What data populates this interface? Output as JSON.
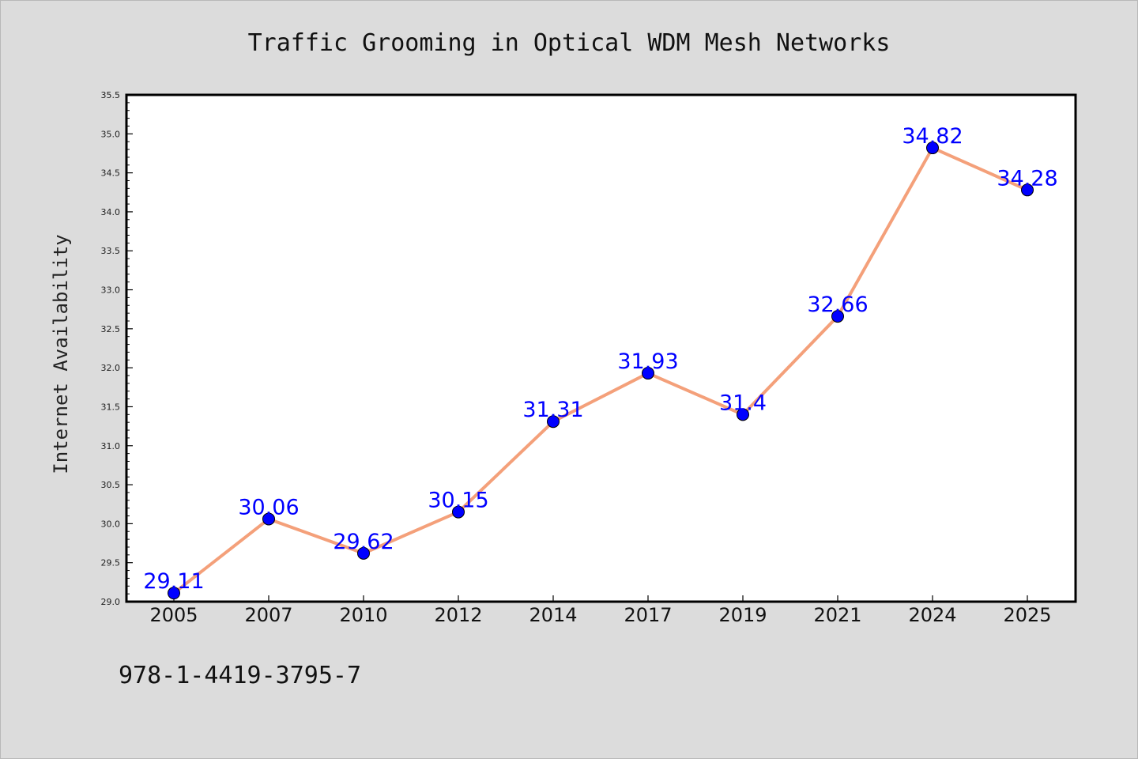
{
  "footer": {
    "isbn": "978-1-4419-3795-7"
  },
  "chart_data": {
    "type": "line",
    "title": "Traffic Grooming in Optical WDM Mesh Networks",
    "xlabel": "",
    "ylabel": "Internet Availability",
    "categories": [
      "2005",
      "2007",
      "2010",
      "2012",
      "2014",
      "2017",
      "2019",
      "2021",
      "2024",
      "2025"
    ],
    "series": [
      {
        "values": [
          29.11,
          30.06,
          29.62,
          30.15,
          31.31,
          31.93,
          31.4,
          32.66,
          34.82,
          34.28
        ],
        "labels": [
          "29.11",
          "30.06",
          "29.62",
          "30.15",
          "31.31",
          "31.93",
          "31.4",
          "32.66",
          "34.82",
          "34.28"
        ]
      }
    ],
    "ylim": [
      29.0,
      35.5
    ],
    "yticks": [
      "29.0",
      "29.5",
      "30.0",
      "30.5",
      "31.0",
      "31.5",
      "32.0",
      "32.5",
      "33.0",
      "33.5",
      "34.0",
      "34.5",
      "35.0",
      "35.5"
    ],
    "grid": false,
    "legend": "none",
    "colors": {
      "line": "#f4a07a",
      "marker": "#0000ff",
      "label": "#0000ff"
    }
  }
}
